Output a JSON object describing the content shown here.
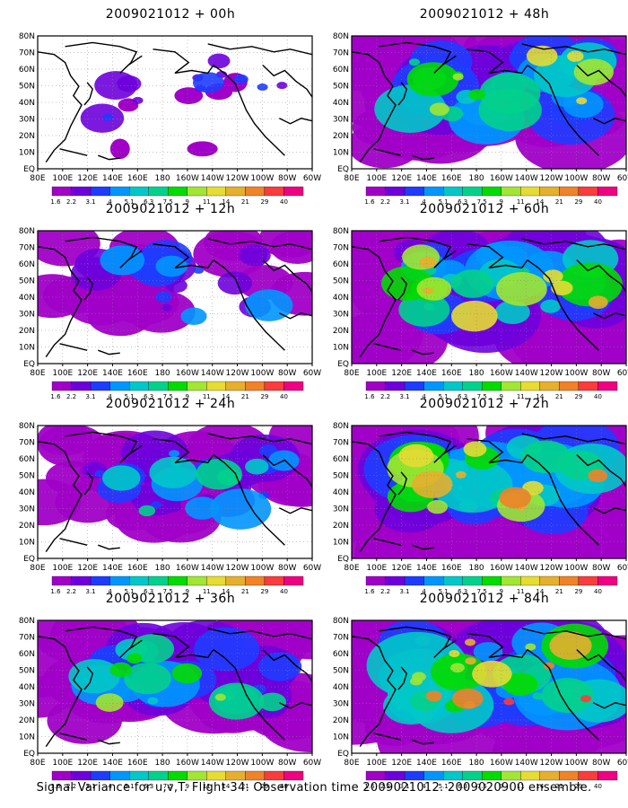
{
  "figure": {
    "caption": "Signal Variance for u,v,T. Flight 34. Observation time 2009021012. 2009020900 ensemble."
  },
  "chart_data": {
    "type": "heatmap",
    "x_tick_labels": [
      "80E",
      "100E",
      "120E",
      "140E",
      "160E",
      "180",
      "160W",
      "140W",
      "120W",
      "100W",
      "80W",
      "60W"
    ],
    "y_tick_labels": [
      "EQ",
      "10N",
      "20N",
      "30N",
      "40N",
      "50N",
      "60N",
      "70N",
      "80N"
    ],
    "colorbar": {
      "levels": [
        "1.6",
        "2.2",
        "3.1",
        "4",
        "5.1",
        "6.3",
        "7.5",
        "9",
        "11",
        "14",
        "21",
        "29",
        "40"
      ],
      "colors": [
        "#a000c8",
        "#6e00dc",
        "#1e3cff",
        "#0096ff",
        "#00c8c8",
        "#00d28c",
        "#00dc00",
        "#a0e632",
        "#e6dc32",
        "#e6af2d",
        "#f08228",
        "#fa3c3c",
        "#f00082"
      ]
    },
    "panels": [
      {
        "title": "2009021012 + 00h",
        "intensity": 0.05
      },
      {
        "title": "2009021012 + 12h",
        "intensity": 0.2
      },
      {
        "title": "2009021012 + 24h",
        "intensity": 0.35
      },
      {
        "title": "2009021012 + 36h",
        "intensity": 0.5
      },
      {
        "title": "2009021012 + 48h",
        "intensity": 0.6
      },
      {
        "title": "2009021012 + 60h",
        "intensity": 0.72
      },
      {
        "title": "2009021012 + 72h",
        "intensity": 0.82
      },
      {
        "title": "2009021012 + 84h",
        "intensity": 0.95
      }
    ]
  }
}
